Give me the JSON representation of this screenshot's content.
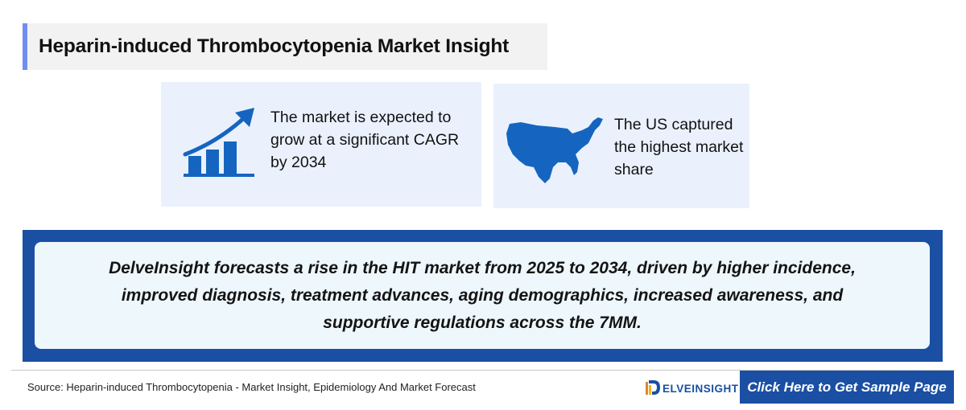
{
  "header": {
    "title": "Heparin-induced Thrombocytopenia Market Insight"
  },
  "cards": [
    {
      "icon": "growth-chart-icon",
      "text": "The market is expected to grow at a significant CAGR by 2034"
    },
    {
      "icon": "us-map-icon",
      "text": "The US captured the highest market share"
    }
  ],
  "forecast": {
    "text": "DelveInsight forecasts a rise in the HIT market from 2025 to 2034, driven by higher incidence, improved diagnosis, treatment advances, aging demographics, increased awareness, and supportive regulations across the 7MM."
  },
  "footer": {
    "source": "Source: Heparin-induced Thrombocytopenia - Market Insight, Epidemiology And Market Forecast",
    "logo_text": "ELVEINSIGHT",
    "cta_label": "Click Here to Get Sample Page"
  },
  "colors": {
    "brand_blue": "#1a4fa3",
    "icon_blue": "#1565c0",
    "accent_bar": "#6f8ff0",
    "card_bg": "#eaf1fd",
    "forecast_bg": "#eef7fc"
  }
}
